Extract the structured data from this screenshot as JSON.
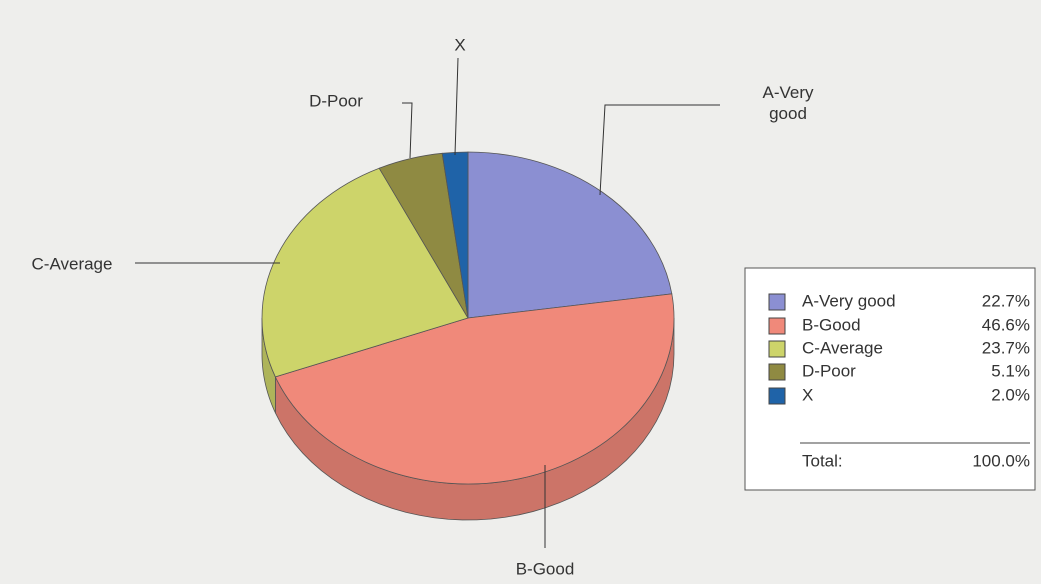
{
  "chart_data": {
    "type": "pie",
    "categories": [
      "A-Very good",
      "B-Good",
      "C-Average",
      "D-Poor",
      "X"
    ],
    "values": [
      22.7,
      46.6,
      23.7,
      5.1,
      2.0
    ],
    "value_labels": [
      "22.7%",
      "46.6%",
      "23.7%",
      "5.1%",
      "2.0%"
    ],
    "colors": [
      "#8b8fd2",
      "#f0897a",
      "#cdd46a",
      "#8f8a42",
      "#1f63a8"
    ],
    "total_label": "Total:",
    "total": 100.0,
    "total_value_label": "100.0%",
    "legend": "right"
  }
}
